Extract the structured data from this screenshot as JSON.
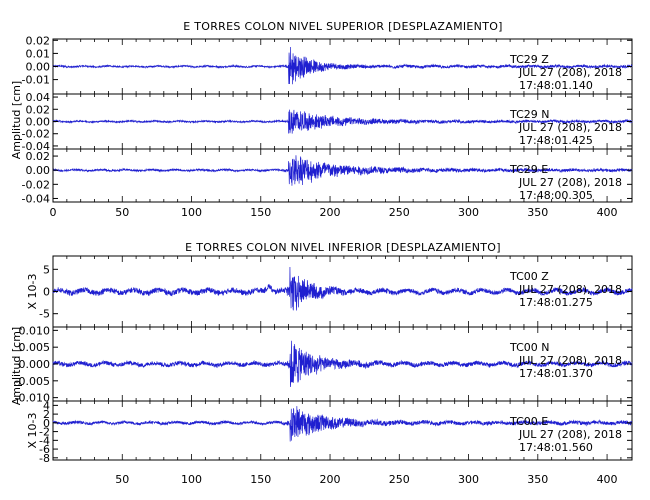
{
  "chart_data": [
    {
      "type": "line",
      "title": "E TORRES COLON NIVEL SUPERIOR [DESPLAZAMIENTO]",
      "ylabel": "Amplitud [cm]",
      "xlim": [
        0,
        418
      ],
      "x_ticks": [
        "0",
        "50",
        "100",
        "150",
        "200",
        "250",
        "300",
        "350",
        "400"
      ],
      "panels": [
        {
          "station": "TC29",
          "component": "Z",
          "date": "JUL 27 (208), 2018",
          "time": "17:48:01.140",
          "ylim": [
            -0.021,
            0.021
          ],
          "y_ticks": [
            "0.02",
            "0.01",
            "0.00",
            "-0.01"
          ],
          "y_tick_values": [
            0.02,
            0.01,
            0.0,
            -0.01
          ],
          "envelope": {
            "noise": 0.0006,
            "onset": 170,
            "peak": 0.018,
            "decay": 14,
            "coda_floor": 0.001,
            "precursor": null
          }
        },
        {
          "station": "TC29",
          "component": "N",
          "date": "JUL 27 (208), 2018",
          "time": "17:48:01.425",
          "ylim": [
            -0.045,
            0.045
          ],
          "y_ticks": [
            "0.04",
            "0.02",
            "0.00",
            "-0.02",
            "-0.04"
          ],
          "y_tick_values": [
            0.04,
            0.02,
            0.0,
            -0.02,
            -0.04
          ],
          "envelope": {
            "noise": 0.0012,
            "onset": 170,
            "peak": 0.025,
            "decay": 28,
            "coda_floor": 0.002,
            "precursor": null
          }
        },
        {
          "station": "TC29",
          "component": "E",
          "date": "JUL 27 (208), 2018",
          "time": "17:48:00.305",
          "ylim": [
            -0.045,
            0.03
          ],
          "y_ticks": [
            "0.02",
            "0.00",
            "-0.02",
            "-0.04"
          ],
          "y_tick_values": [
            0.02,
            0.0,
            -0.02,
            -0.04
          ],
          "envelope": {
            "noise": 0.0012,
            "onset": 170,
            "peak": 0.028,
            "decay": 30,
            "coda_floor": 0.002,
            "precursor": null
          }
        }
      ]
    },
    {
      "type": "line",
      "title": "E TORRES COLON NIVEL INFERIOR [DESPLAZAMIENTO]",
      "ylabel": "Amplitud [cm]",
      "xlim": [
        0,
        418
      ],
      "x_ticks": [
        "50",
        "100",
        "150",
        "200",
        "250",
        "300",
        "350",
        "400"
      ],
      "panels": [
        {
          "station": "TC00",
          "component": "Z",
          "date": "JUL 27 (208), 2018",
          "time": "17:48:01.275",
          "side_label": "X 10-3",
          "ylim": [
            -8,
            8
          ],
          "y_ticks": [
            "5",
            "0",
            "-5"
          ],
          "y_tick_values": [
            5,
            0,
            -5
          ],
          "envelope": {
            "noise": 0.6,
            "onset": 171,
            "peak": 6.5,
            "decay": 12,
            "coda_floor": 0.5,
            "precursor": {
              "x": 156,
              "amp": 1.5
            }
          }
        },
        {
          "station": "TC00",
          "component": "N",
          "date": "JUL 27 (208), 2018",
          "time": "17:48:01.370",
          "ylim": [
            -0.011,
            0.011
          ],
          "y_ticks": [
            "0.010",
            "0.005",
            "0.000",
            "-0.005",
            "-0.010"
          ],
          "y_tick_values": [
            0.01,
            0.005,
            0.0,
            -0.005,
            -0.01
          ],
          "envelope": {
            "noise": 0.0006,
            "onset": 171,
            "peak": 0.009,
            "decay": 16,
            "coda_floor": 0.0006,
            "precursor": null
          }
        },
        {
          "station": "TC00",
          "component": "E",
          "date": "JUL 27 (208), 2018",
          "time": "17:48:01.560",
          "side_label": "X 10-3",
          "ylim": [
            -8.5,
            5
          ],
          "y_ticks": [
            "4",
            "2",
            "0",
            "-2",
            "-4",
            "-6",
            "-8"
          ],
          "y_tick_values": [
            4,
            2,
            0,
            -2,
            -4,
            -6,
            -8
          ],
          "envelope": {
            "noise": 0.3,
            "onset": 171,
            "peak": 5.0,
            "decay": 22,
            "coda_floor": 0.4,
            "precursor": null
          }
        }
      ]
    }
  ],
  "colors": {
    "trace": "#1f1fd0",
    "axes": "#000000",
    "background": "#ffffff"
  }
}
